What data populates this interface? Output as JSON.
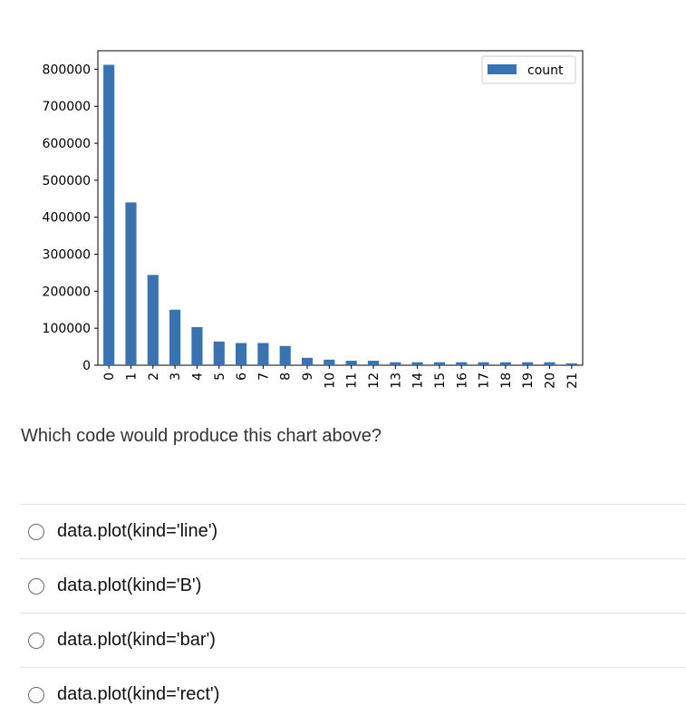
{
  "chart_data": {
    "type": "bar",
    "categories": [
      "0",
      "1",
      "2",
      "3",
      "4",
      "5",
      "6",
      "7",
      "8",
      "9",
      "10",
      "11",
      "12",
      "13",
      "14",
      "15",
      "16",
      "17",
      "18",
      "19",
      "20",
      "21"
    ],
    "series": [
      {
        "name": "count",
        "values": [
          812000,
          440000,
          244000,
          150000,
          103000,
          64000,
          60000,
          60000,
          52000,
          20000,
          15000,
          12000,
          12000,
          8000,
          8000,
          8000,
          8000,
          8000,
          8000,
          8000,
          8000,
          5000
        ]
      }
    ],
    "yticks": [
      "0",
      "100000",
      "200000",
      "300000",
      "400000",
      "500000",
      "600000",
      "700000",
      "800000"
    ],
    "ylim": [
      0,
      850000
    ],
    "legend": {
      "label": "count",
      "placement": "top-right"
    },
    "bar_color": "#3a73b0",
    "grid": false
  },
  "question": {
    "text": "Which code would produce this chart above?"
  },
  "options": [
    {
      "label": "data.plot(kind='line')"
    },
    {
      "label": "data.plot(kind='B')"
    },
    {
      "label": "data.plot(kind='bar')"
    },
    {
      "label": "data.plot(kind='rect')"
    }
  ]
}
